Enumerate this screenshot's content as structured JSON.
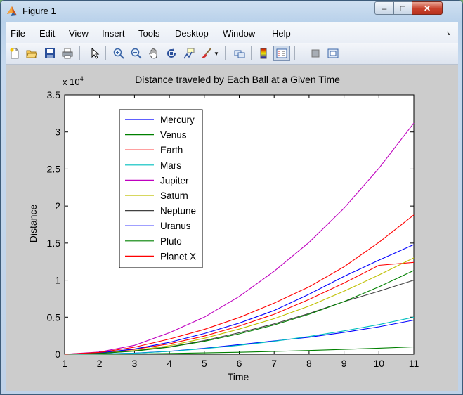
{
  "window": {
    "title": "Figure 1",
    "minimize": "–",
    "maximize": "□",
    "close": "✕"
  },
  "menu": [
    "File",
    "Edit",
    "View",
    "Insert",
    "Tools",
    "Desktop",
    "Window",
    "Help"
  ],
  "toolbar": [
    "new-figure-icon",
    "open-file-icon",
    "save-icon",
    "print-icon",
    "edit-plot-arrow-icon",
    "zoom-in-icon",
    "zoom-out-icon",
    "pan-hand-icon",
    "rotate-3d-icon",
    "data-cursor-icon",
    "brush-icon",
    "link-plot-icon",
    "colorbar-icon",
    "legend-icon",
    "hide-plot-tools-icon",
    "show-plot-tools-icon"
  ],
  "colors": {
    "blue": "#0000ff",
    "green": "#008000",
    "red": "#ff0000",
    "cyan": "#00bfbf",
    "magenta": "#bf00bf",
    "yellow": "#bfbf00",
    "gray": "#404040"
  },
  "chart_data": {
    "type": "line",
    "title": "Distance traveled by Each Ball at a Given Time",
    "xlabel": "Time",
    "ylabel": "Distance",
    "exponent_label": "x 10",
    "exponent_power": "4",
    "xlim": [
      1,
      11
    ],
    "ylim": [
      0,
      35000
    ],
    "xticks": [
      1,
      2,
      3,
      4,
      5,
      6,
      7,
      8,
      9,
      10,
      11
    ],
    "yticks": [
      0,
      5000,
      10000,
      15000,
      20000,
      25000,
      30000,
      35000
    ],
    "ytick_labels": [
      "0",
      "0.5",
      "1",
      "1.5",
      "2",
      "2.5",
      "3",
      "3.5"
    ],
    "legend_position": "upper-left",
    "x": [
      1,
      2,
      3,
      4,
      5,
      6,
      7,
      8,
      9,
      10,
      11
    ],
    "series": [
      {
        "name": "Mercury",
        "color": "#0000ff",
        "values": [
          0,
          45,
          150,
          400,
          800,
          1300,
          1800,
          2300,
          2950,
          3700,
          4600
        ]
      },
      {
        "name": "Venus",
        "color": "#008000",
        "values": [
          0,
          10,
          40,
          100,
          180,
          270,
          380,
          500,
          650,
          820,
          1000
        ]
      },
      {
        "name": "Earth",
        "color": "#ff0000",
        "values": [
          0,
          170,
          650,
          1400,
          2450,
          3800,
          5400,
          7400,
          9600,
          12000,
          12400
        ]
      },
      {
        "name": "Mars",
        "color": "#00bfbf",
        "values": [
          0,
          40,
          140,
          380,
          750,
          1200,
          1750,
          2400,
          3150,
          4000,
          5000
        ]
      },
      {
        "name": "Jupiter",
        "color": "#bf00bf",
        "values": [
          0,
          300,
          1200,
          2900,
          5000,
          7800,
          11200,
          15100,
          19700,
          25100,
          31200
        ]
      },
      {
        "name": "Saturn",
        "color": "#bfbf00",
        "values": [
          0,
          120,
          500,
          1150,
          2150,
          3400,
          4800,
          6500,
          8500,
          10700,
          13000
        ]
      },
      {
        "name": "Neptune",
        "color": "#404040",
        "values": [
          0,
          110,
          450,
          1000,
          1850,
          2900,
          4100,
          5500,
          7100,
          8500,
          10000
        ]
      },
      {
        "name": "Uranus",
        "color": "#0000ff",
        "values": [
          0,
          200,
          700,
          1600,
          2800,
          4200,
          5900,
          8100,
          10500,
          12700,
          14800
        ]
      },
      {
        "name": "Pluto",
        "color": "#008000",
        "values": [
          0,
          110,
          420,
          960,
          1750,
          2750,
          3950,
          5400,
          7100,
          9100,
          11300
        ]
      },
      {
        "name": "Planet X",
        "color": "#ff0000",
        "values": [
          0,
          250,
          950,
          2050,
          3350,
          4950,
          6900,
          9100,
          11800,
          15100,
          18800
        ]
      }
    ]
  }
}
